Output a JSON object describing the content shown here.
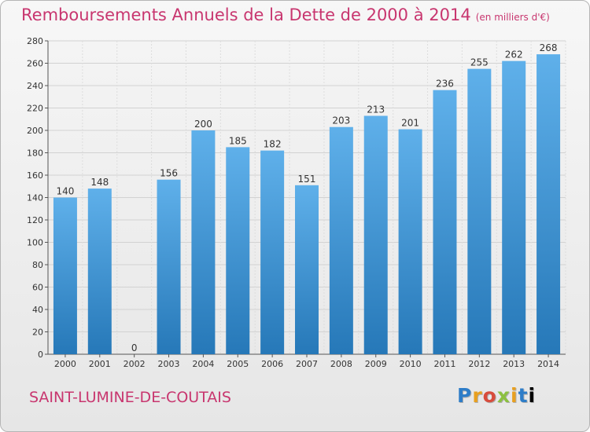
{
  "page": {
    "commune": "SAINT-LUMINE-DE-COUTAIS",
    "logo_text": "Proxiti",
    "colors": {
      "title": "#c8366f",
      "bar_top": "#5fb0ea",
      "bar_bottom": "#2678b8"
    }
  },
  "chart_data": {
    "type": "bar",
    "title": "Remboursements Annuels de la Dette de 2000 à 2014",
    "subtitle": "(en milliers d'€)",
    "xlabel": "",
    "ylabel": "",
    "categories": [
      "2000",
      "2001",
      "2002",
      "2003",
      "2004",
      "2005",
      "2006",
      "2007",
      "2008",
      "2009",
      "2010",
      "2011",
      "2012",
      "2013",
      "2014"
    ],
    "values": [
      140,
      148,
      0,
      156,
      200,
      185,
      182,
      151,
      203,
      213,
      201,
      236,
      255,
      262,
      268
    ],
    "ylim": [
      0,
      280
    ],
    "yticks": [
      0,
      20,
      40,
      60,
      80,
      100,
      120,
      140,
      160,
      180,
      200,
      220,
      240,
      260,
      280
    ],
    "grid": true,
    "legend": "none"
  }
}
